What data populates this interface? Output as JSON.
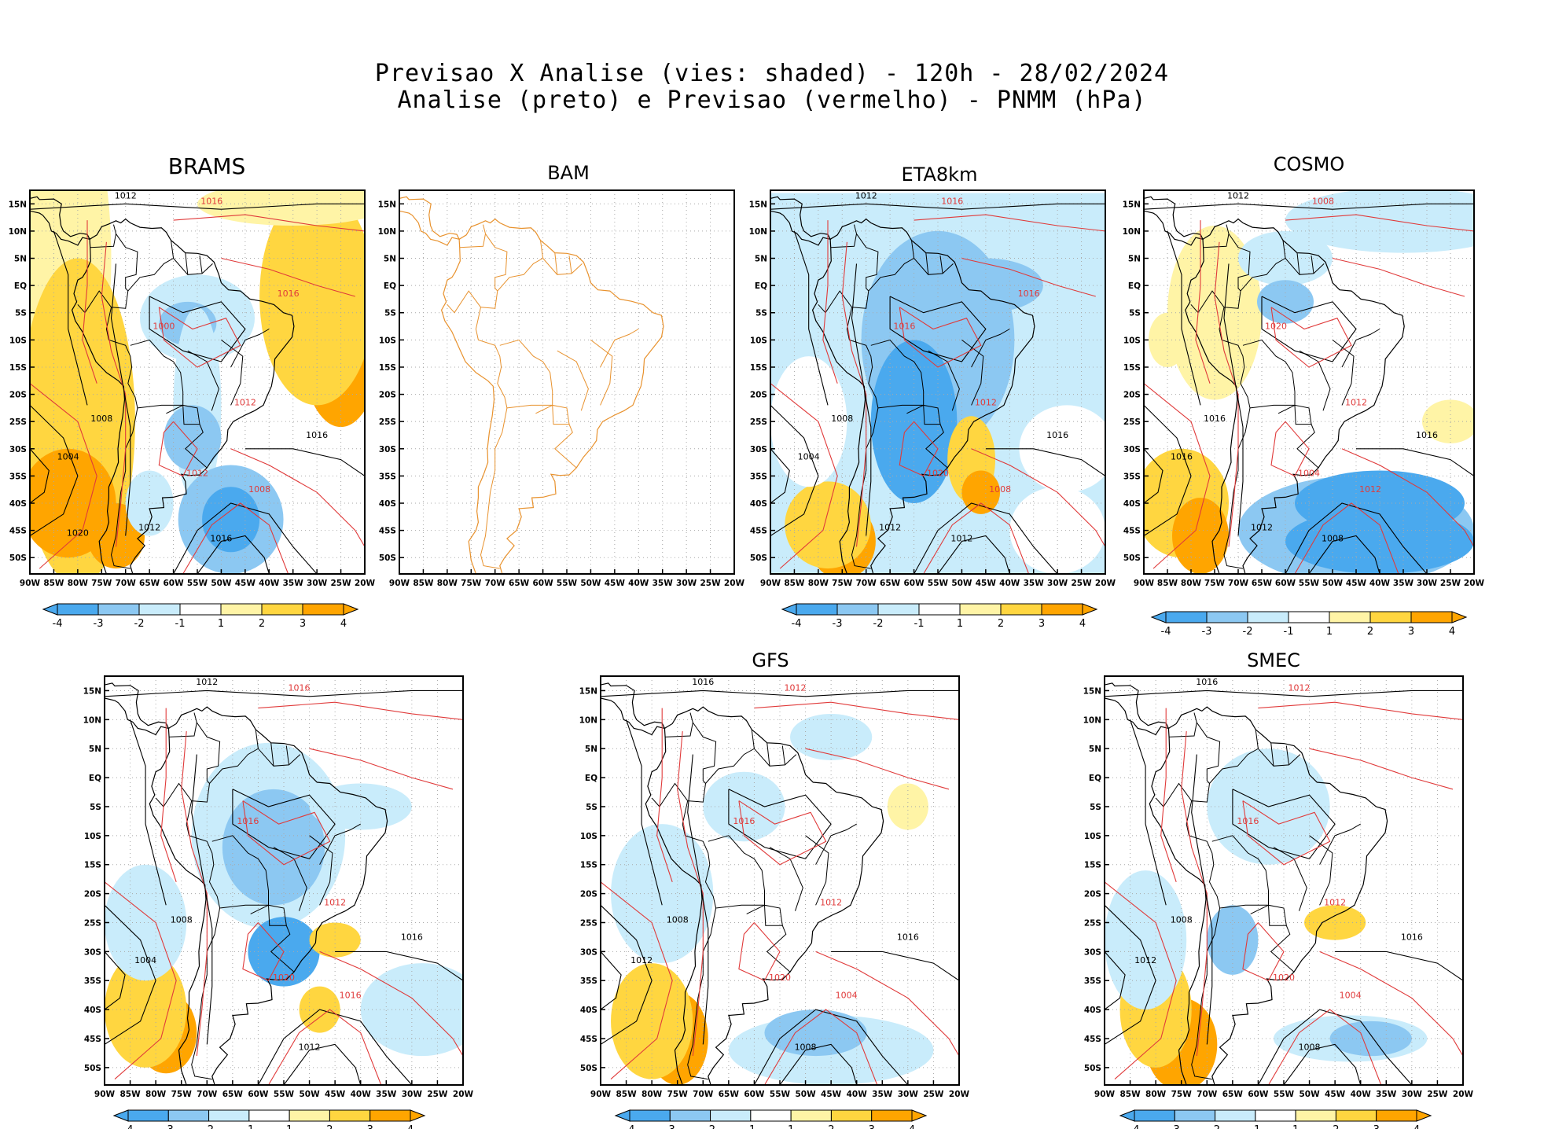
{
  "header": {
    "line1": "Previsao X Analise (vies: shaded) - 120h - 28/02/2024",
    "line2": "Analise (preto) e Previsao (vermelho) - PNMM (hPa)"
  },
  "axes": {
    "lon_labels": [
      "90W",
      "85W",
      "80W",
      "75W",
      "70W",
      "65W",
      "60W",
      "55W",
      "50W",
      "45W",
      "40W",
      "35W",
      "30W",
      "25W",
      "20W"
    ],
    "lat_labels": [
      "15N",
      "10N",
      "5N",
      "EQ",
      "5S",
      "10S",
      "15S",
      "20S",
      "25S",
      "30S",
      "35S",
      "40S",
      "45S",
      "50S"
    ]
  },
  "colorbar": {
    "labels": [
      "-4",
      "-3",
      "-2",
      "-1",
      "1",
      "2",
      "3",
      "4"
    ],
    "colors": [
      "#4aa9ee",
      "#8cc8f2",
      "#c9ecfb",
      "#ffffff",
      "#fff4a6",
      "#ffd640",
      "#ffa500"
    ]
  },
  "colors": {
    "analysis_contour": "#000000",
    "forecast_contour": "#e03a3a",
    "bam_coast": "#e8922e",
    "grid": "#a9a9a9"
  },
  "panels": [
    {
      "id": "brams",
      "title": "BRAMS",
      "contours": [
        "1012",
        "1016",
        "1008",
        "1012",
        "1016",
        "1012",
        "1016",
        "1008",
        "1004",
        "1000",
        "1012",
        "1016",
        "1020"
      ]
    },
    {
      "id": "bam",
      "title": "BAM",
      "contours": []
    },
    {
      "id": "eta8km",
      "title": "ETA8km",
      "contours": [
        "1012",
        "1016",
        "1008",
        "1012",
        "1016",
        "1020",
        "1012",
        "1008",
        "1004",
        "1016",
        "1012",
        "1016"
      ]
    },
    {
      "id": "cosmo",
      "title": "COSMO",
      "contours": [
        "1012",
        "1008",
        "1016",
        "1012",
        "1016",
        "1004",
        "1008",
        "1012",
        "1016",
        "1020",
        "1012"
      ]
    },
    {
      "id": "panel5",
      "title": "",
      "contours": [
        "1012",
        "1016",
        "1008",
        "1012",
        "1016",
        "1020",
        "1012",
        "1016",
        "1004",
        "1016"
      ]
    },
    {
      "id": "gfs",
      "title": "GFS",
      "contours": [
        "1016",
        "1012",
        "1008",
        "1012",
        "1016",
        "1020",
        "1008",
        "1004",
        "1012",
        "1016"
      ]
    },
    {
      "id": "smec",
      "title": "SMEC",
      "contours": [
        "1016",
        "1012",
        "1008",
        "1012",
        "1016",
        "1020",
        "1008",
        "1004",
        "1012",
        "1016"
      ]
    }
  ]
}
